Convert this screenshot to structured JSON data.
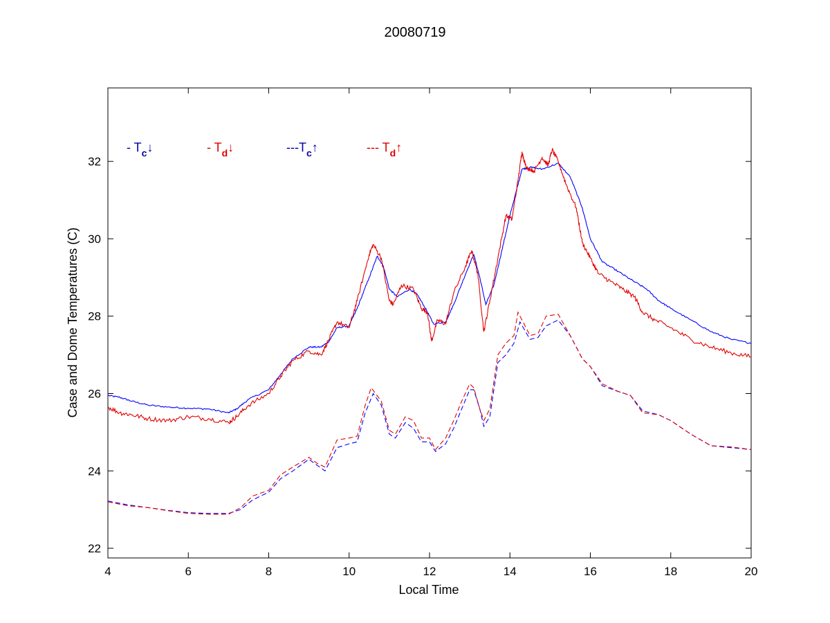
{
  "chart_data": {
    "type": "line",
    "title": "20080719",
    "xlabel": "Local Time",
    "ylabel": "Case and Dome Temperatures (C)",
    "xlim": [
      4,
      20
    ],
    "ylim": [
      21.75,
      33.9
    ],
    "xticks": [
      4,
      6,
      8,
      10,
      12,
      14,
      16,
      18,
      20
    ],
    "yticks": [
      22,
      24,
      26,
      28,
      30,
      32
    ],
    "grid": false,
    "legend_placement": "top-left, horizontal",
    "colors": {
      "blue": "#0000ff",
      "red": "#e00000",
      "legend_blue": "#0000aa",
      "legend_red": "#dd0000"
    },
    "legend": [
      {
        "dash": "- ",
        "symbol": "T",
        "sub": "c",
        "arrow": "↓",
        "color": "#0000aa"
      },
      {
        "dash": "- ",
        "symbol": "T",
        "sub": "d",
        "arrow": "↓",
        "color": "#dd0000"
      },
      {
        "dash": "---",
        "symbol": "T",
        "sub": "c",
        "arrow": "↑",
        "color": "#0000aa"
      },
      {
        "dash": "--- ",
        "symbol": "T",
        "sub": "d",
        "arrow": "↑",
        "color": "#dd0000"
      }
    ],
    "series": [
      {
        "key": "tc_down",
        "color": "#0000ff",
        "dashed": false,
        "noise": 0.02,
        "points": [
          [
            4.0,
            25.95
          ],
          [
            4.3,
            25.9
          ],
          [
            4.6,
            25.8
          ],
          [
            5.0,
            25.7
          ],
          [
            5.5,
            25.65
          ],
          [
            6.0,
            25.62
          ],
          [
            6.5,
            25.6
          ],
          [
            7.0,
            25.5
          ],
          [
            7.2,
            25.6
          ],
          [
            7.5,
            25.85
          ],
          [
            8.0,
            26.1
          ],
          [
            8.3,
            26.5
          ],
          [
            8.6,
            26.9
          ],
          [
            9.0,
            27.2
          ],
          [
            9.3,
            27.2
          ],
          [
            9.5,
            27.35
          ],
          [
            9.7,
            27.7
          ],
          [
            10.0,
            27.75
          ],
          [
            10.2,
            28.2
          ],
          [
            10.5,
            29.0
          ],
          [
            10.7,
            29.55
          ],
          [
            10.85,
            29.3
          ],
          [
            11.0,
            28.7
          ],
          [
            11.2,
            28.5
          ],
          [
            11.5,
            28.7
          ],
          [
            11.7,
            28.55
          ],
          [
            11.9,
            28.2
          ],
          [
            12.1,
            27.8
          ],
          [
            12.4,
            27.85
          ],
          [
            12.6,
            28.3
          ],
          [
            12.9,
            29.1
          ],
          [
            13.1,
            29.6
          ],
          [
            13.25,
            29.0
          ],
          [
            13.4,
            28.3
          ],
          [
            13.6,
            28.8
          ],
          [
            13.8,
            29.7
          ],
          [
            14.0,
            30.6
          ],
          [
            14.15,
            31.2
          ],
          [
            14.3,
            31.8
          ],
          [
            14.5,
            31.85
          ],
          [
            14.8,
            31.8
          ],
          [
            15.2,
            31.95
          ],
          [
            15.5,
            31.6
          ],
          [
            15.8,
            30.8
          ],
          [
            16.0,
            30.0
          ],
          [
            16.3,
            29.4
          ],
          [
            16.7,
            29.15
          ],
          [
            17.0,
            28.95
          ],
          [
            17.4,
            28.7
          ],
          [
            17.7,
            28.4
          ],
          [
            18.0,
            28.2
          ],
          [
            18.5,
            27.9
          ],
          [
            19.0,
            27.6
          ],
          [
            19.5,
            27.4
          ],
          [
            20.0,
            27.3
          ]
        ]
      },
      {
        "key": "td_down",
        "color": "#e00000",
        "dashed": false,
        "noise": 0.06,
        "points": [
          [
            4.0,
            25.65
          ],
          [
            4.3,
            25.5
          ],
          [
            4.6,
            25.45
          ],
          [
            5.0,
            25.35
          ],
          [
            5.5,
            25.3
          ],
          [
            6.0,
            25.4
          ],
          [
            6.5,
            25.35
          ],
          [
            7.0,
            25.25
          ],
          [
            7.2,
            25.4
          ],
          [
            7.5,
            25.7
          ],
          [
            8.0,
            26.0
          ],
          [
            8.3,
            26.45
          ],
          [
            8.6,
            26.85
          ],
          [
            9.0,
            27.1
          ],
          [
            9.3,
            27.0
          ],
          [
            9.5,
            27.4
          ],
          [
            9.7,
            27.85
          ],
          [
            10.0,
            27.7
          ],
          [
            10.2,
            28.4
          ],
          [
            10.5,
            29.6
          ],
          [
            10.6,
            29.85
          ],
          [
            10.8,
            29.5
          ],
          [
            11.0,
            28.4
          ],
          [
            11.1,
            28.3
          ],
          [
            11.3,
            28.8
          ],
          [
            11.6,
            28.7
          ],
          [
            11.8,
            28.2
          ],
          [
            11.95,
            28.1
          ],
          [
            12.05,
            27.35
          ],
          [
            12.2,
            27.9
          ],
          [
            12.4,
            27.8
          ],
          [
            12.6,
            28.6
          ],
          [
            12.9,
            29.3
          ],
          [
            13.05,
            29.7
          ],
          [
            13.2,
            29.1
          ],
          [
            13.35,
            27.6
          ],
          [
            13.5,
            28.4
          ],
          [
            13.7,
            29.5
          ],
          [
            13.9,
            30.6
          ],
          [
            14.05,
            30.5
          ],
          [
            14.2,
            31.5
          ],
          [
            14.3,
            32.25
          ],
          [
            14.4,
            31.85
          ],
          [
            14.6,
            31.75
          ],
          [
            14.8,
            32.1
          ],
          [
            14.95,
            31.9
          ],
          [
            15.05,
            32.3
          ],
          [
            15.2,
            32.0
          ],
          [
            15.4,
            31.4
          ],
          [
            15.65,
            30.8
          ],
          [
            15.8,
            29.9
          ],
          [
            16.0,
            29.5
          ],
          [
            16.2,
            29.1
          ],
          [
            16.5,
            28.9
          ],
          [
            16.8,
            28.7
          ],
          [
            17.1,
            28.5
          ],
          [
            17.3,
            28.1
          ],
          [
            17.6,
            27.9
          ],
          [
            18.0,
            27.7
          ],
          [
            18.5,
            27.4
          ],
          [
            19.0,
            27.2
          ],
          [
            19.5,
            27.05
          ],
          [
            20.0,
            26.95
          ]
        ]
      },
      {
        "key": "tc_up",
        "color": "#0000ff",
        "dashed": true,
        "noise": 0.0,
        "points": [
          [
            4.0,
            23.22
          ],
          [
            4.5,
            23.12
          ],
          [
            5.0,
            23.05
          ],
          [
            5.5,
            22.98
          ],
          [
            6.0,
            22.92
          ],
          [
            6.5,
            22.9
          ],
          [
            7.0,
            22.9
          ],
          [
            7.3,
            23.0
          ],
          [
            7.6,
            23.25
          ],
          [
            8.0,
            23.45
          ],
          [
            8.3,
            23.8
          ],
          [
            8.6,
            24.0
          ],
          [
            9.0,
            24.3
          ],
          [
            9.2,
            24.15
          ],
          [
            9.4,
            24.0
          ],
          [
            9.7,
            24.6
          ],
          [
            10.0,
            24.7
          ],
          [
            10.2,
            24.75
          ],
          [
            10.4,
            25.5
          ],
          [
            10.6,
            26.0
          ],
          [
            10.8,
            25.7
          ],
          [
            11.0,
            24.95
          ],
          [
            11.15,
            24.85
          ],
          [
            11.4,
            25.25
          ],
          [
            11.6,
            25.1
          ],
          [
            11.8,
            24.75
          ],
          [
            12.0,
            24.75
          ],
          [
            12.15,
            24.5
          ],
          [
            12.4,
            24.7
          ],
          [
            12.6,
            25.1
          ],
          [
            12.8,
            25.6
          ],
          [
            13.0,
            26.1
          ],
          [
            13.1,
            26.1
          ],
          [
            13.25,
            25.6
          ],
          [
            13.35,
            25.15
          ],
          [
            13.5,
            25.4
          ],
          [
            13.7,
            26.8
          ],
          [
            13.9,
            27.0
          ],
          [
            14.1,
            27.3
          ],
          [
            14.25,
            27.85
          ],
          [
            14.5,
            27.4
          ],
          [
            14.7,
            27.45
          ],
          [
            14.9,
            27.75
          ],
          [
            15.2,
            27.9
          ],
          [
            15.5,
            27.5
          ],
          [
            15.8,
            26.9
          ],
          [
            16.0,
            26.7
          ],
          [
            16.3,
            26.2
          ],
          [
            16.7,
            26.05
          ],
          [
            17.0,
            25.95
          ],
          [
            17.3,
            25.55
          ],
          [
            17.7,
            25.45
          ],
          [
            18.0,
            25.3
          ],
          [
            18.5,
            24.95
          ],
          [
            19.0,
            24.65
          ],
          [
            19.5,
            24.6
          ],
          [
            20.0,
            24.55
          ]
        ]
      },
      {
        "key": "td_up",
        "color": "#e00000",
        "dashed": true,
        "noise": 0.0,
        "points": [
          [
            4.0,
            23.2
          ],
          [
            4.5,
            23.1
          ],
          [
            5.0,
            23.05
          ],
          [
            5.5,
            22.97
          ],
          [
            6.0,
            22.9
          ],
          [
            6.5,
            22.88
          ],
          [
            7.0,
            22.88
          ],
          [
            7.3,
            23.05
          ],
          [
            7.6,
            23.35
          ],
          [
            8.0,
            23.5
          ],
          [
            8.3,
            23.9
          ],
          [
            8.6,
            24.1
          ],
          [
            9.0,
            24.35
          ],
          [
            9.2,
            24.2
          ],
          [
            9.4,
            24.1
          ],
          [
            9.7,
            24.8
          ],
          [
            10.0,
            24.85
          ],
          [
            10.2,
            24.9
          ],
          [
            10.4,
            25.7
          ],
          [
            10.55,
            26.15
          ],
          [
            10.8,
            25.8
          ],
          [
            11.0,
            25.05
          ],
          [
            11.15,
            24.95
          ],
          [
            11.4,
            25.4
          ],
          [
            11.6,
            25.3
          ],
          [
            11.8,
            24.85
          ],
          [
            12.0,
            24.85
          ],
          [
            12.15,
            24.55
          ],
          [
            12.4,
            24.85
          ],
          [
            12.6,
            25.3
          ],
          [
            12.8,
            25.8
          ],
          [
            13.0,
            26.25
          ],
          [
            13.1,
            26.15
          ],
          [
            13.25,
            25.6
          ],
          [
            13.35,
            25.3
          ],
          [
            13.5,
            25.6
          ],
          [
            13.7,
            27.0
          ],
          [
            13.9,
            27.3
          ],
          [
            14.1,
            27.5
          ],
          [
            14.2,
            28.1
          ],
          [
            14.5,
            27.5
          ],
          [
            14.7,
            27.55
          ],
          [
            14.9,
            28.0
          ],
          [
            15.2,
            28.05
          ],
          [
            15.5,
            27.5
          ],
          [
            15.8,
            26.9
          ],
          [
            16.0,
            26.7
          ],
          [
            16.3,
            26.25
          ],
          [
            16.7,
            26.05
          ],
          [
            17.0,
            25.95
          ],
          [
            17.3,
            25.5
          ],
          [
            17.7,
            25.45
          ],
          [
            18.0,
            25.3
          ],
          [
            18.5,
            24.95
          ],
          [
            19.0,
            24.65
          ],
          [
            19.5,
            24.62
          ],
          [
            20.0,
            24.55
          ]
        ]
      }
    ]
  }
}
